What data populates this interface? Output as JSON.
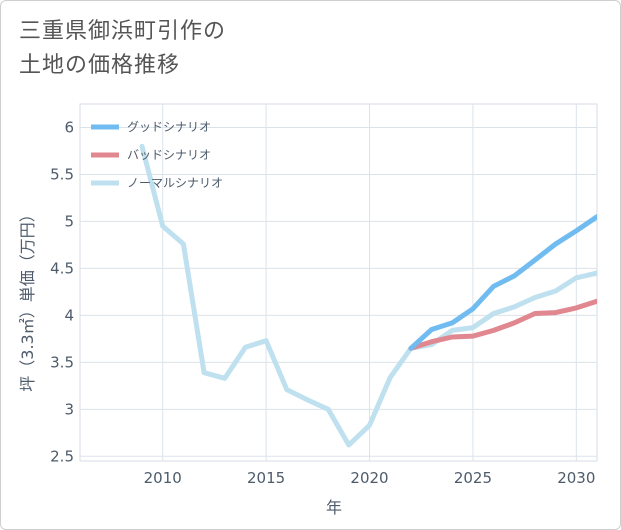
{
  "title": "三重県御浜町引作の\n土地の価格推移",
  "chart_data": {
    "type": "line",
    "xlabel": "年",
    "ylabel": "坪（3.3㎡）単価（万円）",
    "xlim": [
      2006,
      2031
    ],
    "ylim": [
      2.45,
      6.25
    ],
    "x_ticks": [
      2010,
      2015,
      2020,
      2025,
      2030
    ],
    "y_ticks": [
      2.5,
      3,
      3.5,
      4,
      4.5,
      5,
      5.5,
      6
    ],
    "x_tick_labels": [
      "2010",
      "2015",
      "2020",
      "2025",
      "2030"
    ],
    "y_tick_labels": [
      "2.5",
      "3",
      "3.5",
      "4",
      "4.5",
      "5",
      "5.5",
      "6"
    ],
    "grid": true,
    "legend_position": "top-left",
    "series": [
      {
        "name": "グッドシナリオ",
        "color": "#70bcf0",
        "x": [
          2022,
          2023,
          2024,
          2025,
          2026,
          2027,
          2028,
          2029,
          2030,
          2031
        ],
        "values": [
          3.65,
          3.85,
          3.92,
          4.07,
          4.31,
          4.42,
          4.59,
          4.76,
          4.9,
          5.05
        ]
      },
      {
        "name": "バッドシナリオ",
        "color": "#e0878f",
        "x": [
          2022,
          2023,
          2024,
          2025,
          2026,
          2027,
          2028,
          2029,
          2030,
          2031
        ],
        "values": [
          3.65,
          3.72,
          3.77,
          3.78,
          3.84,
          3.92,
          4.02,
          4.03,
          4.08,
          4.15
        ]
      },
      {
        "name": "ノーマルシナリオ",
        "color": "#bfe0ee",
        "x": [
          2009,
          2010,
          2011,
          2012,
          2013,
          2014,
          2015,
          2016,
          2017,
          2018,
          2019,
          2020,
          2021,
          2022,
          2023,
          2024,
          2025,
          2026,
          2027,
          2028,
          2029,
          2030,
          2031
        ],
        "values": [
          5.8,
          4.95,
          4.76,
          3.39,
          3.33,
          3.66,
          3.73,
          3.21,
          3.1,
          3.0,
          2.62,
          2.83,
          3.34,
          3.65,
          3.69,
          3.84,
          3.87,
          4.02,
          4.09,
          4.19,
          4.26,
          4.4,
          4.45
        ]
      }
    ]
  }
}
